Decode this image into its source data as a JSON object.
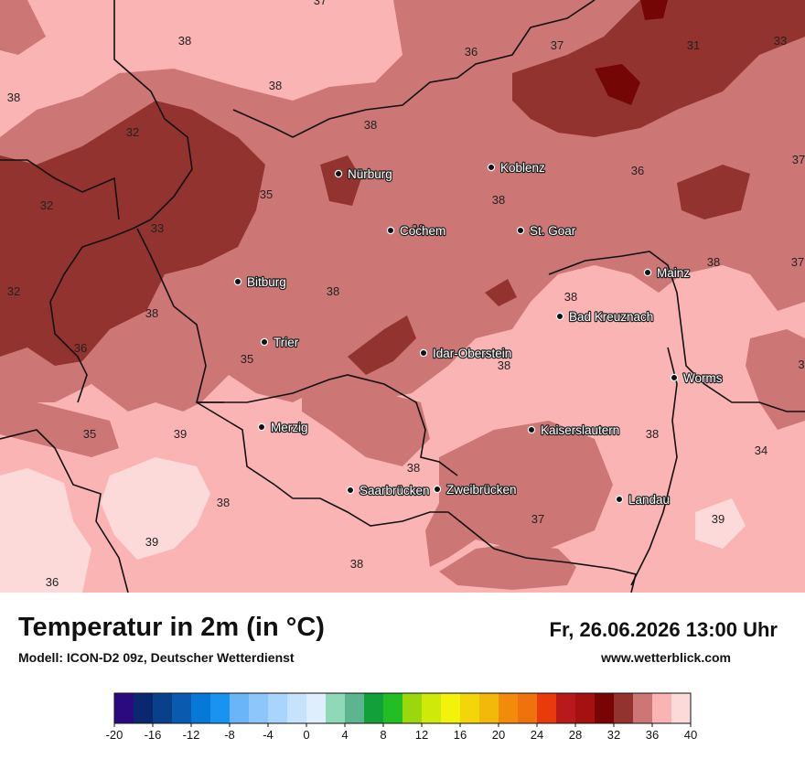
{
  "map": {
    "colors": {
      "t39_40": "#fcdada",
      "t38_39": "#fbb4b4",
      "t36_38": "#cd7676",
      "t34_36": "#93332f",
      "t32_34": "#750606",
      "border": "#111111"
    },
    "cities": [
      {
        "name": "Nürburg"
      },
      {
        "name": "Koblenz"
      },
      {
        "name": "Cochem"
      },
      {
        "name": "St. Goar"
      },
      {
        "name": "Bitburg"
      },
      {
        "name": "Mainz"
      },
      {
        "name": "Bad Kreuznach"
      },
      {
        "name": "Trier"
      },
      {
        "name": "Idar-Oberstein"
      },
      {
        "name": "Worms"
      },
      {
        "name": "Merzig"
      },
      {
        "name": "Kaiserslautern"
      },
      {
        "name": "Saarbrücken"
      },
      {
        "name": "Zweibrücken"
      },
      {
        "name": "Landau"
      }
    ],
    "values": [
      "38",
      "36",
      "37",
      "31",
      "33",
      "38",
      "38",
      "38",
      "32",
      "35",
      "36",
      "37",
      "32",
      "33",
      "38",
      "38",
      "38",
      "32",
      "38",
      "37",
      "38",
      "36",
      "38",
      "35",
      "38",
      "39",
      "35",
      "38",
      "34",
      "38",
      "37",
      "39",
      "39",
      "38",
      "36",
      "37",
      "38",
      "3"
    ]
  },
  "footer": {
    "title": "Temperatur in 2m (in °C)",
    "subtitle": "Modell: ICON-D2 09z, Deutscher Wetterdienst",
    "datetime": "Fr, 26.06.2026 13:00 Uhr",
    "website": "www.wetterblick.com"
  },
  "legend": {
    "colors": [
      "#2b0a7f",
      "#0a2870",
      "#08418a",
      "#0a5bb0",
      "#0678d8",
      "#1993f2",
      "#6ab5f8",
      "#8cc6fa",
      "#a9d4fb",
      "#c6e2fc",
      "#dfeefd",
      "#8fd8b8",
      "#5cb58f",
      "#11a03a",
      "#23be23",
      "#9ad80c",
      "#cee90a",
      "#f2f20a",
      "#f2d60a",
      "#f2b90a",
      "#f28b0a",
      "#f0720c",
      "#e83a0a",
      "#b8191a",
      "#a51010",
      "#780404",
      "#93332f",
      "#cd7676",
      "#fbb4b4",
      "#fcdada"
    ],
    "ticks": [
      "-20",
      "-16",
      "-12",
      "-8",
      "-4",
      "0",
      "4",
      "8",
      "12",
      "16",
      "20",
      "24",
      "28",
      "32",
      "36",
      "40"
    ]
  }
}
